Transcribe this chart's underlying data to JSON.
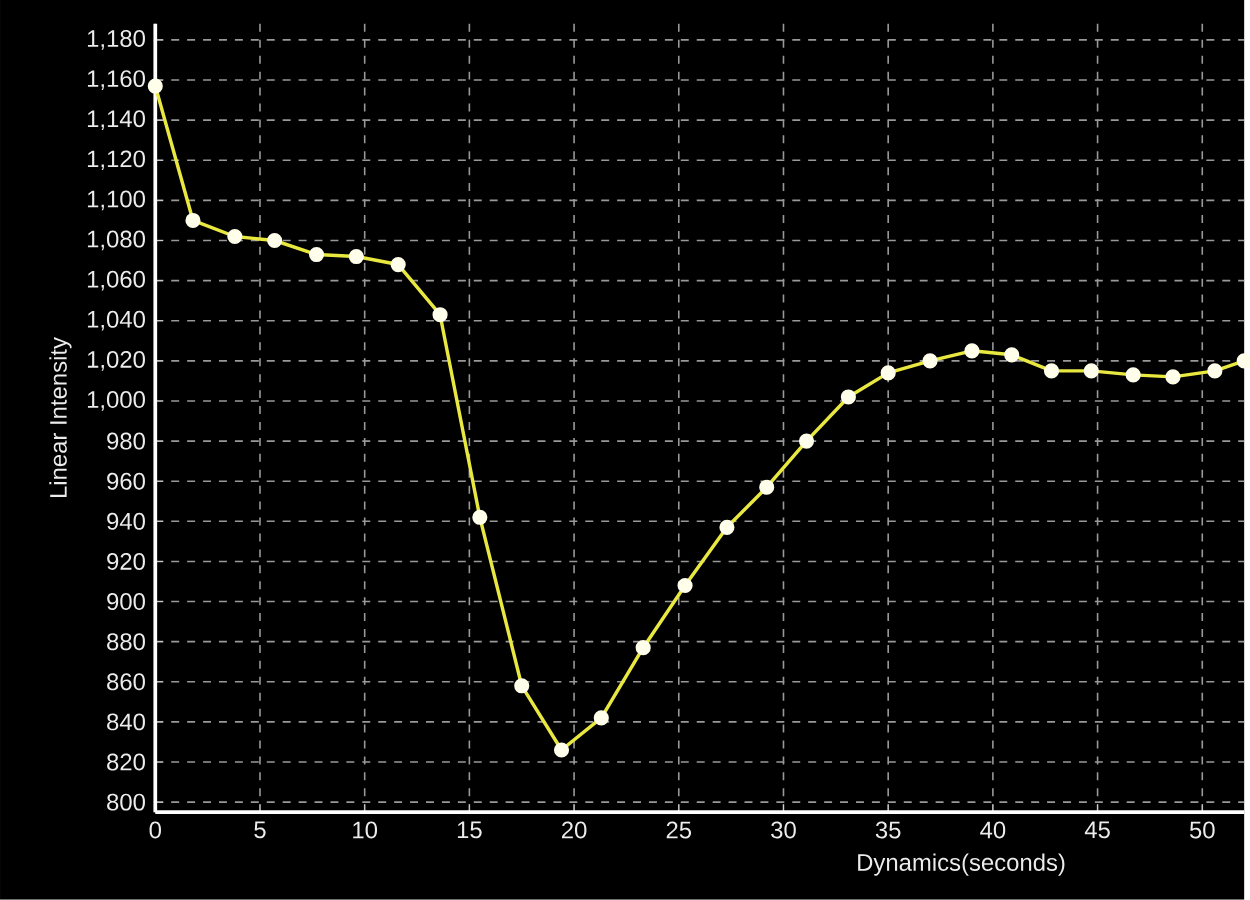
{
  "chart_data": {
    "type": "line",
    "xlabel": "Dynamics(seconds)",
    "ylabel": "Linear Intensity",
    "x": [
      0,
      1.8,
      3.8,
      5.7,
      7.7,
      9.6,
      11.6,
      13.6,
      15.5,
      17.5,
      19.4,
      21.3,
      23.3,
      25.3,
      27.3,
      29.2,
      31.1,
      33.1,
      35,
      37,
      39,
      40.9,
      42.8,
      44.7,
      46.7,
      48.6,
      50.6,
      52
    ],
    "series": [
      {
        "color": "#e8e840",
        "values": [
          1157,
          1090,
          1082,
          1080,
          1073,
          1072,
          1068,
          1043,
          942,
          858,
          826,
          842,
          877,
          908,
          937,
          957,
          980,
          1002,
          1014,
          1020,
          1025,
          1023,
          1015,
          1015,
          1013,
          1012,
          1015,
          1020
        ]
      }
    ],
    "xlim": [
      0,
      52
    ],
    "ylim": [
      795,
      1188
    ],
    "xticks": [
      0,
      5,
      10,
      15,
      20,
      25,
      30,
      35,
      40,
      45,
      50
    ],
    "yticks": [
      800,
      820,
      840,
      860,
      880,
      900,
      920,
      940,
      960,
      980,
      {
        "value": 1000,
        "label": "1,000"
      },
      {
        "value": 1020,
        "label": "1,020"
      },
      {
        "value": 1040,
        "label": "1,040"
      },
      {
        "value": 1060,
        "label": "1,060"
      },
      {
        "value": 1080,
        "label": "1,080"
      },
      {
        "value": 1100,
        "label": "1,100"
      },
      {
        "value": 1120,
        "label": "1,120"
      },
      {
        "value": 1140,
        "label": "1,140"
      },
      {
        "value": 1160,
        "label": "1,160"
      },
      {
        "value": 1180,
        "label": "1,180"
      }
    ],
    "grid": true,
    "marker": "circle",
    "line_style": "solid"
  }
}
